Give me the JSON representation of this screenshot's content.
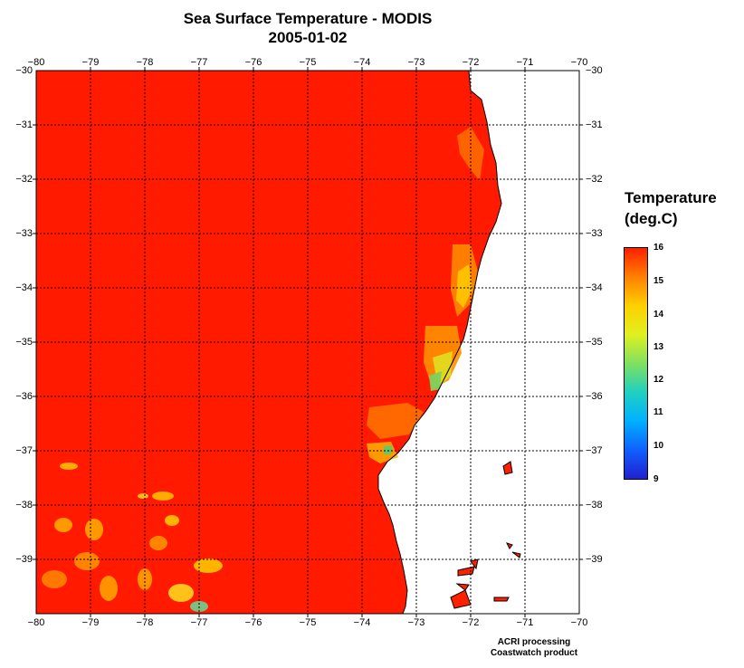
{
  "title": "Sea Surface Temperature - MODIS",
  "date": "2005-01-02",
  "longitude_ticks": [
    "−80",
    "−79",
    "−78",
    "−77",
    "−76",
    "−75",
    "−74",
    "−73",
    "−72",
    "−71",
    "−70"
  ],
  "latitude_ticks": [
    "−30",
    "−31",
    "−32",
    "−33",
    "−34",
    "−35",
    "−36",
    "−37",
    "−38",
    "−39"
  ],
  "legend": {
    "title_line1": "Temperature",
    "title_line2": "(deg.C)",
    "labels": [
      "16",
      "15",
      "14",
      "13",
      "12",
      "11",
      "10",
      "9"
    ],
    "min": 9,
    "max": 16,
    "colors": [
      "#2020d0",
      "#1060ff",
      "#00b0ff",
      "#20d0c0",
      "#80e060",
      "#e0f020",
      "#ffd000",
      "#ff8000",
      "#ff2000"
    ]
  },
  "colors": {
    "ocean_warm": "#ff1a00",
    "land": "#ffffff",
    "grid": "#000000"
  },
  "footer": {
    "line1": "ACRI processing",
    "line2": "Coastwatch product"
  }
}
